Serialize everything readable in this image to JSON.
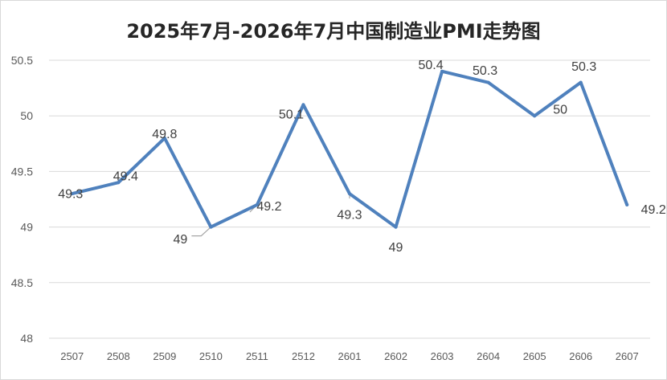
{
  "chart_data": {
    "type": "line",
    "title": "2025年7月-2026年7月中国制造业PMI走势图",
    "xlabel": "",
    "ylabel": "",
    "categories": [
      "2507",
      "2508",
      "2509",
      "2510",
      "2511",
      "2512",
      "2601",
      "2602",
      "2603",
      "2604",
      "2605",
      "2606",
      "2607"
    ],
    "series": [
      {
        "values": [
          49.3,
          49.4,
          49.8,
          49,
          49.2,
          50.1,
          49.3,
          49,
          50.4,
          50.3,
          50,
          50.3,
          49.2
        ],
        "labels": [
          "49.3",
          "49.4",
          "49.8",
          "49",
          "49.2",
          "50.1",
          "49.3",
          "49",
          "50.4",
          "50.3",
          "50",
          "50.3",
          "49.2"
        ],
        "color": "#4f81bd"
      }
    ],
    "ylim": [
      48,
      50.5
    ],
    "yticks": [
      "48",
      "48.5",
      "49",
      "49.5",
      "50",
      "50.5"
    ],
    "ytick_values": [
      48,
      48.5,
      49,
      49.5,
      50,
      50.5
    ],
    "grid": true,
    "legend": "none"
  }
}
